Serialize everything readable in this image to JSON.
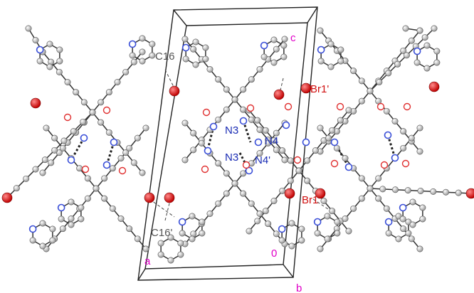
{
  "labels": {
    "c16": "C16",
    "c16p": "C16'",
    "n3_top": "N3",
    "n3_bottom": "N3",
    "n4_top": "N4",
    "n4_bottom": "N4'",
    "br1": "Br1",
    "br1p": "Br1'",
    "axis_a": "a",
    "axis_b": "b",
    "axis_c": "c",
    "origin": "0"
  },
  "colors": {
    "label_gray": "#555555",
    "label_blue": "#1a2cb4",
    "label_red": "#d01010",
    "axis_magenta": "#e000c8",
    "atom_carbon": "#c8c8c8",
    "atom_nitrogen": "#3a4fd8",
    "atom_oxygen": "#e03030",
    "atom_bromine": "#e02020",
    "bond": "#333333"
  }
}
